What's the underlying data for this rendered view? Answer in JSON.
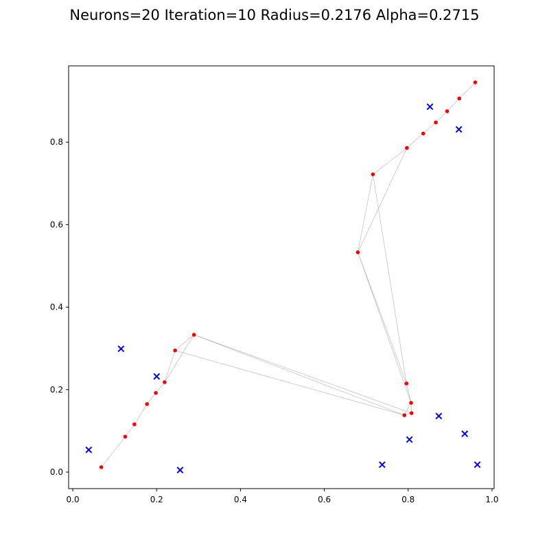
{
  "chart_data": {
    "type": "scatter",
    "title": "Neurons=20 Iteration=10 Radius=0.2176 Alpha=0.2715",
    "xlabel": "",
    "ylabel": "",
    "xlim": [
      -0.01,
      1.005
    ],
    "ylim": [
      -0.04,
      0.985
    ],
    "xticks": [
      0.0,
      0.2,
      0.4,
      0.6,
      0.8,
      1.0
    ],
    "xtick_labels": [
      "0.0",
      "0.2",
      "0.4",
      "0.6",
      "0.8",
      "1.0"
    ],
    "yticks": [
      0.0,
      0.2,
      0.4,
      0.6,
      0.8
    ],
    "ytick_labels": [
      "0.0",
      "0.2",
      "0.4",
      "0.6",
      "0.8"
    ],
    "grid": false,
    "colors": {
      "neurons": "#ff0000",
      "cities": "#0000ff",
      "connections": "#b0b0b0"
    },
    "cities": [
      {
        "x": 0.038,
        "y": 0.054
      },
      {
        "x": 0.115,
        "y": 0.299
      },
      {
        "x": 0.2,
        "y": 0.232
      },
      {
        "x": 0.256,
        "y": 0.005
      },
      {
        "x": 0.738,
        "y": 0.018
      },
      {
        "x": 0.803,
        "y": 0.079
      },
      {
        "x": 0.873,
        "y": 0.136
      },
      {
        "x": 0.935,
        "y": 0.093
      },
      {
        "x": 0.965,
        "y": 0.018
      },
      {
        "x": 0.852,
        "y": 0.886
      },
      {
        "x": 0.921,
        "y": 0.831
      }
    ],
    "neurons": [
      {
        "x": 0.068,
        "y": 0.012
      },
      {
        "x": 0.125,
        "y": 0.086
      },
      {
        "x": 0.147,
        "y": 0.116
      },
      {
        "x": 0.177,
        "y": 0.165
      },
      {
        "x": 0.198,
        "y": 0.192
      },
      {
        "x": 0.219,
        "y": 0.218
      },
      {
        "x": 0.244,
        "y": 0.295
      },
      {
        "x": 0.289,
        "y": 0.333
      },
      {
        "x": 0.791,
        "y": 0.138
      },
      {
        "x": 0.808,
        "y": 0.143
      },
      {
        "x": 0.807,
        "y": 0.168
      },
      {
        "x": 0.796,
        "y": 0.215
      },
      {
        "x": 0.68,
        "y": 0.533
      },
      {
        "x": 0.716,
        "y": 0.722
      },
      {
        "x": 0.797,
        "y": 0.786
      },
      {
        "x": 0.836,
        "y": 0.821
      },
      {
        "x": 0.866,
        "y": 0.848
      },
      {
        "x": 0.893,
        "y": 0.875
      },
      {
        "x": 0.922,
        "y": 0.906
      },
      {
        "x": 0.96,
        "y": 0.945
      }
    ],
    "connections": [
      [
        0,
        1
      ],
      [
        1,
        2
      ],
      [
        2,
        3
      ],
      [
        3,
        4
      ],
      [
        4,
        5
      ],
      [
        5,
        6
      ],
      [
        6,
        7
      ],
      [
        5,
        7
      ],
      [
        7,
        8
      ],
      [
        6,
        8
      ],
      [
        7,
        9
      ],
      [
        8,
        9
      ],
      [
        9,
        10
      ],
      [
        8,
        10
      ],
      [
        10,
        11
      ],
      [
        11,
        12
      ],
      [
        10,
        12
      ],
      [
        12,
        13
      ],
      [
        11,
        13
      ],
      [
        12,
        14
      ],
      [
        13,
        14
      ],
      [
        14,
        15
      ],
      [
        15,
        16
      ],
      [
        16,
        17
      ],
      [
        17,
        18
      ],
      [
        18,
        19
      ]
    ]
  }
}
